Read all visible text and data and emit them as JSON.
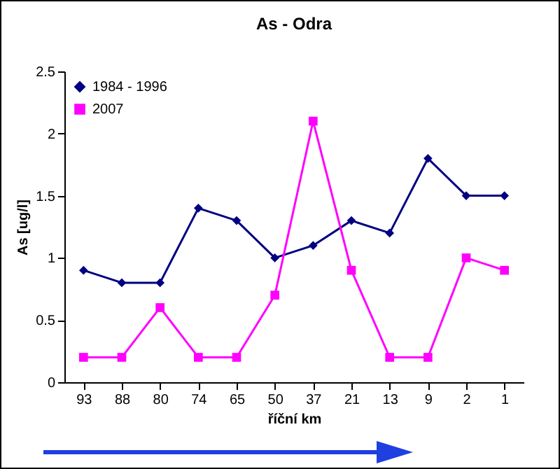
{
  "chart_data": {
    "type": "line",
    "title": "As - Odra",
    "xlabel": "říční km",
    "ylabel": "As  [ug/l]",
    "categories": [
      "93",
      "88",
      "80",
      "74",
      "65",
      "50",
      "37",
      "21",
      "13",
      "9",
      "2",
      "1"
    ],
    "series": [
      {
        "name": "1984 - 1996",
        "color": "#000080",
        "marker": "diamond",
        "values": [
          0.9,
          0.8,
          0.8,
          1.4,
          1.3,
          1.0,
          1.1,
          1.3,
          1.2,
          1.8,
          1.5,
          1.5
        ]
      },
      {
        "name": "2007",
        "color": "#ff00ff",
        "marker": "square",
        "values": [
          0.2,
          0.2,
          0.6,
          0.2,
          0.2,
          0.7,
          2.1,
          0.9,
          0.2,
          0.2,
          1.0,
          0.9
        ]
      }
    ],
    "ylim": [
      0,
      2.5
    ],
    "yticks": [
      0,
      0.5,
      1,
      1.5,
      2,
      2.5
    ],
    "grid": false,
    "legend": "top left",
    "line_style": "solid"
  }
}
